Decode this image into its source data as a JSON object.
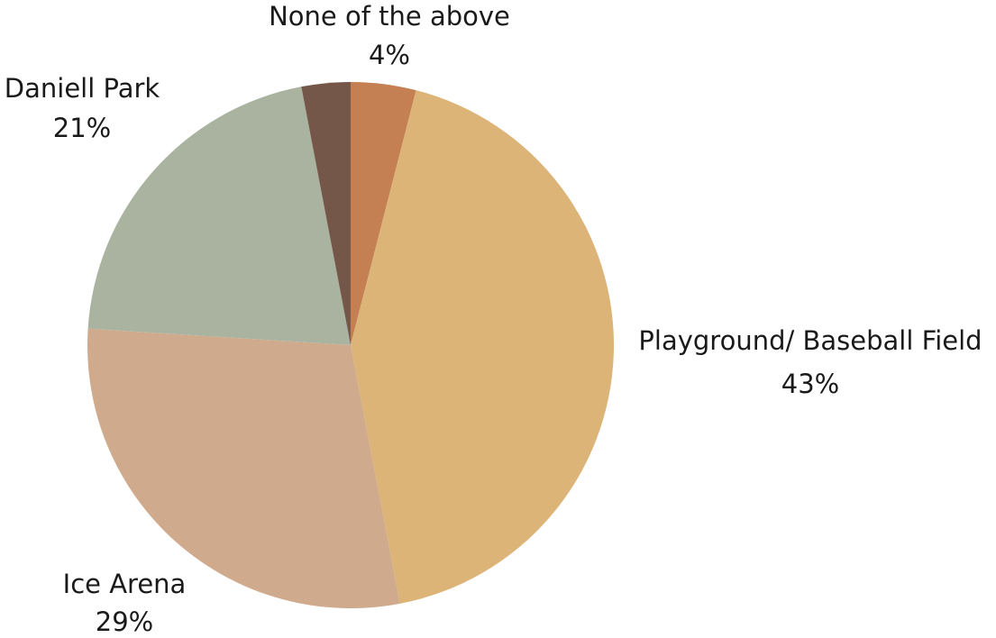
{
  "chart_data": {
    "type": "pie",
    "title": "",
    "slices": [
      {
        "label": "None of the above",
        "value": 4,
        "display": "4%",
        "color": "#c47f52"
      },
      {
        "label": "Playground/ Baseball Field",
        "value": 43,
        "display": "43%",
        "color": "#dcb478"
      },
      {
        "label": "Ice Arena",
        "value": 29,
        "display": "29%",
        "color": "#cfaa8d"
      },
      {
        "label": "Daniell Park",
        "value": 21,
        "display": "21%",
        "color": "#aab39f"
      },
      {
        "label": "",
        "value": 3,
        "display": "",
        "color": "#75574a"
      }
    ],
    "legend": "none",
    "start_angle": "12 o'clock",
    "direction": "clockwise"
  }
}
